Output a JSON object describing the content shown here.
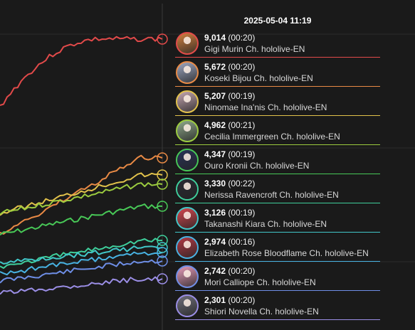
{
  "timestamp": "2025-05-04 11:19",
  "legend": [
    {
      "count": "9,014",
      "duration": "(00:20)",
      "name": "Gigi Murin Ch. hololive-EN",
      "color": "#e24a4a",
      "avatar": "#d1803f"
    },
    {
      "count": "5,672",
      "duration": "(00:20)",
      "name": "Koseki Bijou Ch. hololive-EN",
      "color": "#e98a45",
      "avatar": "#9da6c0"
    },
    {
      "count": "5,207",
      "duration": "(00:19)",
      "name": "Ninomae Ina'nis Ch. hololive-EN",
      "color": "#e2c24b",
      "avatar": "#c5a6b0"
    },
    {
      "count": "4,962",
      "duration": "(00:21)",
      "name": "Cecilia Immergreen Ch. hololive-EN",
      "color": "#9ccc3f",
      "avatar": "#8fa88a"
    },
    {
      "count": "4,347",
      "duration": "(00:19)",
      "name": "Ouro Kronii Ch. hololive-EN",
      "color": "#48c957",
      "avatar": "#2a3256"
    },
    {
      "count": "3,330",
      "duration": "(00:22)",
      "name": "Nerissa Ravencroft Ch. hololive-EN",
      "color": "#3fcf9c",
      "avatar": "#2a2a33"
    },
    {
      "count": "3,126",
      "duration": "(00:19)",
      "name": "Takanashi Kiara Ch. hololive-EN",
      "color": "#41c8c9",
      "avatar": "#d4484f"
    },
    {
      "count": "2,974",
      "duration": "(00:16)",
      "name": "Elizabeth Rose Bloodflame Ch. hololive-EN",
      "color": "#48b3e3",
      "avatar": "#b23a45"
    },
    {
      "count": "2,742",
      "duration": "(00:20)",
      "name": "Mori Calliope Ch. hololive-EN",
      "color": "#6e8ee6",
      "avatar": "#e59bb9"
    },
    {
      "count": "2,301",
      "duration": "(00:20)",
      "name": "Shiori Novella Ch. hololive-EN",
      "color": "#9b8ee6",
      "avatar": "#6f6e7a"
    }
  ],
  "chart_data": {
    "type": "line",
    "grid": true,
    "x_visible_range": "recent window ending at 2025-05-04 11:19",
    "series": [
      {
        "name": "Gigi Murin Ch. hololive-EN",
        "color": "#e24a4a",
        "last_value": 9014
      },
      {
        "name": "Koseki Bijou Ch. hololive-EN",
        "color": "#e98a45",
        "last_value": 5672
      },
      {
        "name": "Ninomae Ina'nis Ch. hololive-EN",
        "color": "#e2c24b",
        "last_value": 5207
      },
      {
        "name": "Cecilia Immergreen Ch. hololive-EN",
        "color": "#9ccc3f",
        "last_value": 4962
      },
      {
        "name": "Ouro Kronii Ch. hololive-EN",
        "color": "#48c957",
        "last_value": 4347
      },
      {
        "name": "Nerissa Ravencroft Ch. hololive-EN",
        "color": "#3fcf9c",
        "last_value": 3330
      },
      {
        "name": "Takanashi Kiara Ch. hololive-EN",
        "color": "#41c8c9",
        "last_value": 3126
      },
      {
        "name": "Elizabeth Rose Bloodflame Ch. hololive-EN",
        "color": "#48b3e3",
        "last_value": 2974
      },
      {
        "name": "Mori Calliope Ch. hololive-EN",
        "color": "#6e8ee6",
        "last_value": 2742
      },
      {
        "name": "Shiori Novella Ch. hololive-EN",
        "color": "#9b8ee6",
        "last_value": 2301
      }
    ]
  }
}
